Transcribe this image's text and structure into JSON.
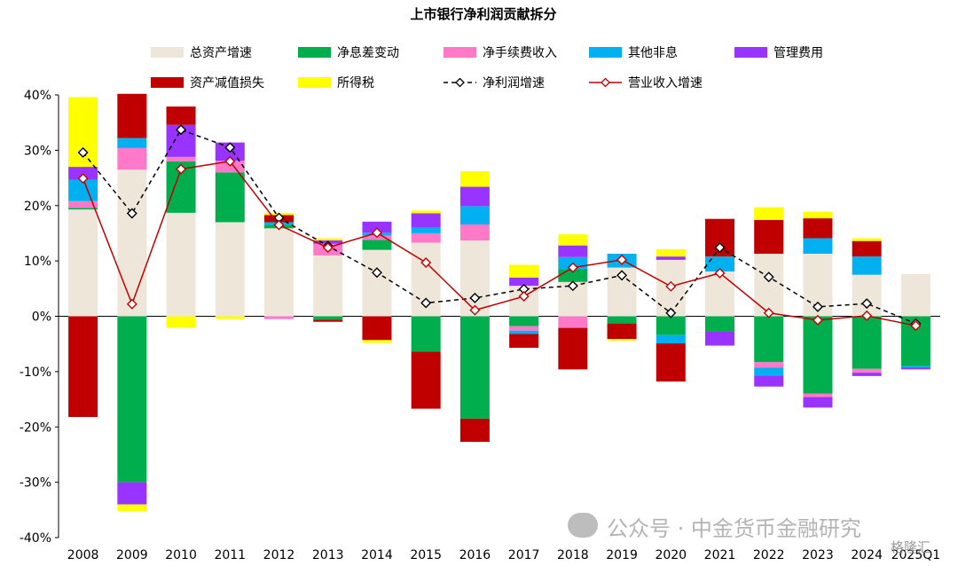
{
  "chart_data": {
    "type": "bar",
    "title": "上市银行净利润贡献拆分",
    "categories": [
      "2008",
      "2009",
      "2010",
      "2011",
      "2012",
      "2013",
      "2014",
      "2015",
      "2016",
      "2017",
      "2018",
      "2019",
      "2020",
      "2021",
      "2022",
      "2023",
      "2024",
      "2025Q1"
    ],
    "ylim": [
      -40,
      40
    ],
    "yticks": [
      "40%",
      "30%",
      "20%",
      "10%",
      "0%",
      "-10%",
      "-20%",
      "-30%",
      "-40%"
    ],
    "grid": false,
    "legend_position": "top",
    "stacked_series": [
      {
        "name": "总资产增速",
        "color": "#EFE6DA",
        "values": [
          19.3,
          26.5,
          18.7,
          17.0,
          15.9,
          11.0,
          12.0,
          13.3,
          13.7,
          5.5,
          6.2,
          8.8,
          10.2,
          8.1,
          11.3,
          11.3,
          7.5,
          7.6
        ]
      },
      {
        "name": "净息差变动",
        "color": "#00AE4D",
        "values": [
          0.3,
          -30.0,
          9.3,
          9.0,
          0.6,
          -0.6,
          1.8,
          -6.4,
          -18.5,
          -1.8,
          2.3,
          -1.3,
          -3.4,
          -2.8,
          -8.3,
          -14.0,
          -9.5,
          -9.0
        ]
      },
      {
        "name": "净手续费收入",
        "color": "#FF79C8",
        "values": [
          1.2,
          3.9,
          0.8,
          2.1,
          -0.5,
          2.1,
          0.8,
          1.7,
          2.9,
          -0.8,
          -2.1,
          0.0,
          0.0,
          0.0,
          -1.0,
          -0.6,
          -0.7,
          0.0
        ]
      },
      {
        "name": "其他非息",
        "color": "#00B0F0",
        "values": [
          3.9,
          1.8,
          0.0,
          0.0,
          0.5,
          0.0,
          0.5,
          1.0,
          3.3,
          -0.6,
          2.2,
          2.5,
          -1.5,
          2.7,
          -1.4,
          2.8,
          3.3,
          -0.3
        ]
      },
      {
        "name": "管理费用",
        "color": "#9933FF",
        "values": [
          2.3,
          -4.0,
          5.8,
          3.3,
          0.0,
          0.6,
          2.0,
          2.6,
          3.5,
          1.5,
          2.1,
          0.0,
          0.6,
          -2.5,
          -2.0,
          -1.9,
          -0.6,
          -0.3
        ]
      },
      {
        "name": "资产减值损失",
        "color": "#C00000",
        "values": [
          -18.2,
          8.0,
          3.3,
          0.0,
          1.3,
          -0.4,
          -4.3,
          -10.3,
          -4.2,
          -2.5,
          -7.5,
          -2.8,
          -6.9,
          6.8,
          6.1,
          3.6,
          2.8,
          0.0
        ]
      },
      {
        "name": "所得税",
        "color": "#FFFF00",
        "values": [
          12.6,
          -1.2,
          -2.1,
          -0.5,
          0.4,
          0.4,
          -0.5,
          0.5,
          2.8,
          2.3,
          2.0,
          -0.3,
          1.3,
          0.0,
          2.3,
          1.2,
          0.5,
          0.0
        ]
      }
    ],
    "line_series": [
      {
        "name": "净利润增速",
        "color": "#000000",
        "style": "dashed",
        "values": [
          29.6,
          18.6,
          33.7,
          30.5,
          17.8,
          12.7,
          7.9,
          2.4,
          3.3,
          4.9,
          5.5,
          7.4,
          0.6,
          12.4,
          7.1,
          1.7,
          2.3,
          -1.3
        ]
      },
      {
        "name": "营业收入增速",
        "color": "#C00000",
        "style": "solid",
        "values": [
          24.9,
          2.2,
          26.6,
          28.0,
          16.5,
          12.4,
          15.1,
          9.7,
          1.1,
          3.6,
          8.8,
          10.2,
          5.4,
          7.8,
          0.6,
          -0.7,
          0.1,
          -1.7
        ]
      }
    ]
  },
  "watermark": {
    "text": "公众号 · 中金货币金融研究",
    "sub": "格隆汇"
  }
}
